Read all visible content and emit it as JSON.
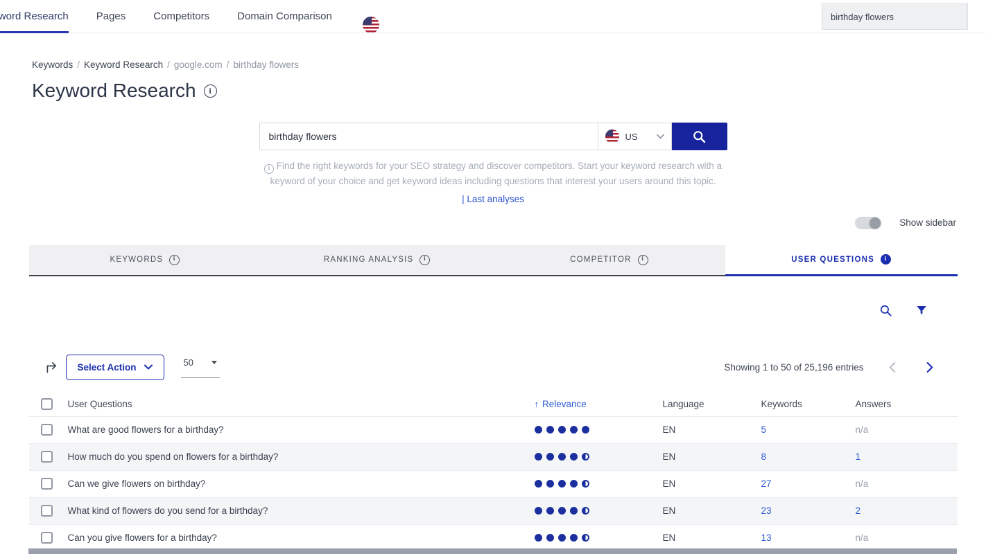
{
  "topnav": {
    "items": [
      {
        "label": "Keyword Research"
      },
      {
        "label": "Pages"
      },
      {
        "label": "Competitors"
      },
      {
        "label": "Domain Comparison"
      }
    ],
    "search_value": "birthday flowers"
  },
  "breadcrumb": {
    "items": [
      "Keywords",
      "Keyword Research",
      "google.com",
      "birthday flowers"
    ],
    "separator": "/"
  },
  "page": {
    "title": "Keyword Research"
  },
  "search": {
    "value": "birthday flowers",
    "country_code": "US",
    "description_line1": "Find the right keywords for your SEO strategy and discover competitors. Start your keyword research with a",
    "description_line2": "keyword of your choice and get keyword ideas including questions that interest your users around this topic.",
    "last_analyses_label": "| Last analyses"
  },
  "sidebar": {
    "toggle_label": "Show sidebar"
  },
  "tabs": [
    {
      "label": "KEYWORDS"
    },
    {
      "label": "RANKING ANALYSIS"
    },
    {
      "label": "COMPETITOR"
    },
    {
      "label": "USER QUESTIONS"
    }
  ],
  "toolbar": {
    "select_action_label": "Select Action",
    "page_size": "50",
    "showing_text": "Showing 1 to 50 of 25,196 entries"
  },
  "table": {
    "headers": {
      "questions": "User Questions",
      "relevance": "Relevance",
      "language": "Language",
      "keywords": "Keywords",
      "answers": "Answers"
    },
    "sort_arrow": "↑",
    "rows": [
      {
        "question": "What are good flowers for a birthday?",
        "relevance": "5",
        "language": "EN",
        "keywords": "5",
        "answers": "n/a"
      },
      {
        "question": "How much do you spend on flowers for a birthday?",
        "relevance": "4.5",
        "language": "EN",
        "keywords": "8",
        "answers": "1"
      },
      {
        "question": "Can we give flowers on birthday?",
        "relevance": "4.5",
        "language": "EN",
        "keywords": "27",
        "answers": "n/a"
      },
      {
        "question": "What kind of flowers do you send for a birthday?",
        "relevance": "4.5",
        "language": "EN",
        "keywords": "23",
        "answers": "2"
      },
      {
        "question": "Can you give flowers for a birthday?",
        "relevance": "4.5",
        "language": "EN",
        "keywords": "13",
        "answers": "n/a"
      }
    ]
  },
  "colors": {
    "primary": "#1b2fb0",
    "link": "#2d5bd7",
    "dot": "#1b2f9e",
    "button": "#16239c"
  }
}
